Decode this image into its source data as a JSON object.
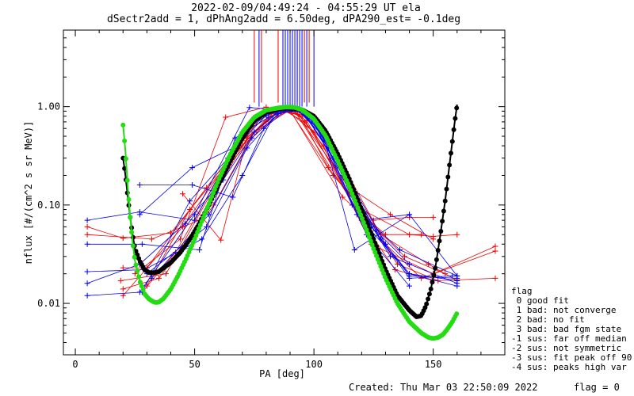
{
  "title_line1": "2022-02-09/04:49:24 - 04:55:29 UT ela",
  "title_line2": "dSectr2add = 1, dPhAng2add = 6.50deg, dPA290_est=  -0.1deg",
  "footer_created": "Created: Thu Mar 03 22:50:09 2022",
  "footer_flag": "flag = 0",
  "legend": {
    "heading": "flag",
    "entries": [
      " 0 good fit",
      " 1 bad: not converge",
      " 2 bad: no fit",
      " 3 bad: bad fgm state",
      "-1 sus: far off median",
      "-2 sus: not symmetric",
      "-3 sus: fit peak off 90",
      "-4 sus: peaks high var"
    ]
  },
  "colors": {
    "red": "#ee0000",
    "blue": "#0000ee",
    "black": "#000000",
    "green": "#22dd11"
  },
  "chart_data": {
    "type": "line",
    "xlabel": "PA [deg]",
    "ylabel": "nflux [#/(cm^2 s sr MeV)]",
    "xlim": [
      -5,
      180
    ],
    "ylim": [
      0.003,
      6
    ],
    "yscale": "log",
    "xticks": [
      0,
      50,
      100,
      150
    ],
    "xtick_labels": [
      "0",
      "50",
      "100",
      "150"
    ],
    "yticks": [
      0.01,
      0.1,
      1.0
    ],
    "ytick_labels": [
      "0.01",
      "0.10",
      "1.00"
    ],
    "grid": false,
    "series": [
      {
        "color": "black",
        "x": [
          20,
          21,
          22,
          23,
          24,
          25,
          27,
          29,
          31,
          33,
          35,
          37,
          40,
          44,
          48,
          52,
          56,
          60,
          65,
          70,
          75,
          80,
          85,
          88,
          90,
          92,
          95,
          100,
          105,
          110,
          115,
          120,
          125,
          130,
          135,
          140,
          143,
          145,
          147,
          149,
          151,
          153,
          155,
          157,
          159,
          160
        ],
        "y": [
          0.3,
          0.2,
          0.12,
          0.075,
          0.05,
          0.036,
          0.027,
          0.022,
          0.0205,
          0.0205,
          0.021,
          0.023,
          0.026,
          0.033,
          0.045,
          0.065,
          0.1,
          0.16,
          0.28,
          0.48,
          0.72,
          0.88,
          0.95,
          0.97,
          0.97,
          0.96,
          0.93,
          0.8,
          0.56,
          0.33,
          0.18,
          0.09,
          0.045,
          0.022,
          0.012,
          0.0085,
          0.0073,
          0.0075,
          0.0095,
          0.014,
          0.024,
          0.05,
          0.11,
          0.28,
          0.7,
          1.05
        ]
      },
      {
        "color": "green",
        "x": [
          20,
          21,
          22,
          23,
          24,
          25,
          27,
          29,
          31,
          33,
          34,
          35,
          37,
          40,
          43,
          46,
          50,
          55,
          60,
          65,
          70,
          75,
          80,
          85,
          88,
          90,
          92,
          95,
          100,
          105,
          110,
          115,
          120,
          125,
          130,
          135,
          140,
          145,
          148,
          150,
          152,
          154,
          156,
          158,
          160
        ],
        "y": [
          0.65,
          0.35,
          0.15,
          0.075,
          0.042,
          0.027,
          0.017,
          0.0125,
          0.011,
          0.0103,
          0.0102,
          0.0103,
          0.0112,
          0.014,
          0.019,
          0.027,
          0.045,
          0.09,
          0.18,
          0.33,
          0.55,
          0.78,
          0.92,
          0.97,
          0.99,
          0.99,
          0.98,
          0.93,
          0.75,
          0.5,
          0.28,
          0.15,
          0.075,
          0.036,
          0.018,
          0.01,
          0.0065,
          0.005,
          0.0045,
          0.0044,
          0.0045,
          0.0048,
          0.0055,
          0.0065,
          0.008
        ]
      }
    ],
    "red_spectra": [
      [
        [
          5,
          0.06
        ],
        [
          20,
          0.046
        ],
        [
          40,
          0.052
        ],
        [
          70,
          0.4
        ],
        [
          88,
          0.95
        ],
        [
          100,
          0.55
        ],
        [
          120,
          0.09
        ],
        [
          140,
          0.05
        ],
        [
          150,
          0.048
        ],
        [
          160,
          0.05
        ]
      ],
      [
        [
          20,
          0.023
        ],
        [
          30,
          0.023
        ],
        [
          55,
          0.15
        ],
        [
          78,
          0.78
        ],
        [
          89,
          0.98
        ],
        [
          108,
          0.2
        ],
        [
          125,
          0.07
        ],
        [
          140,
          0.075
        ],
        [
          150,
          0.075
        ]
      ],
      [
        [
          19,
          0.017
        ],
        [
          38,
          0.02
        ],
        [
          62,
          0.22
        ],
        [
          80,
          0.7
        ],
        [
          90,
          0.92
        ],
        [
          112,
          0.12
        ],
        [
          130,
          0.05
        ],
        [
          145,
          0.05
        ]
      ],
      [
        [
          20,
          0.014
        ],
        [
          35,
          0.018
        ],
        [
          58,
          0.1
        ],
        [
          75,
          0.55
        ],
        [
          91,
          0.96
        ],
        [
          115,
          0.15
        ],
        [
          132,
          0.08
        ],
        [
          150,
          0.045
        ]
      ],
      [
        [
          28,
          0.013
        ],
        [
          42,
          0.033
        ],
        [
          64,
          0.28
        ],
        [
          82,
          0.85
        ],
        [
          92,
          0.9
        ],
        [
          118,
          0.09
        ],
        [
          138,
          0.03
        ],
        [
          155,
          0.02
        ]
      ],
      [
        [
          20,
          0.012
        ],
        [
          45,
          0.06
        ],
        [
          66,
          0.32
        ],
        [
          84,
          0.92
        ],
        [
          94,
          0.83
        ],
        [
          106,
          0.24
        ],
        [
          128,
          0.05
        ],
        [
          148,
          0.025
        ],
        [
          160,
          0.017
        ]
      ],
      [
        [
          5,
          0.05
        ],
        [
          32,
          0.045
        ],
        [
          52,
          0.07
        ],
        [
          72,
          0.48
        ],
        [
          86,
          0.96
        ],
        [
          96,
          0.7
        ],
        [
          110,
          0.32
        ],
        [
          130,
          0.04
        ],
        [
          145,
          0.018
        ],
        [
          176,
          0.034
        ]
      ],
      [
        [
          25,
          0.02
        ],
        [
          44,
          0.045
        ],
        [
          63,
          0.78
        ],
        [
          80,
          0.99
        ],
        [
          93,
          0.86
        ],
        [
          104,
          0.4
        ],
        [
          124,
          0.04
        ],
        [
          150,
          0.02
        ],
        [
          176,
          0.038
        ]
      ],
      [
        [
          30,
          0.015
        ],
        [
          48,
          0.09
        ],
        [
          70,
          0.45
        ],
        [
          86,
          0.92
        ],
        [
          95,
          0.8
        ],
        [
          115,
          0.13
        ],
        [
          135,
          0.025
        ],
        [
          152,
          0.017
        ],
        [
          176,
          0.018
        ]
      ],
      [
        [
          45,
          0.13
        ],
        [
          61,
          0.044
        ],
        [
          73,
          0.6
        ],
        [
          88,
          0.97
        ],
        [
          97,
          0.72
        ],
        [
          120,
          0.07
        ],
        [
          134,
          0.022
        ],
        [
          150,
          0.017
        ]
      ]
    ],
    "blue_spectra": [
      [
        [
          5,
          0.016
        ],
        [
          27,
          0.025
        ],
        [
          46,
          0.065
        ],
        [
          62,
          0.18
        ],
        [
          75,
          0.55
        ],
        [
          86,
          0.92
        ],
        [
          95,
          0.88
        ],
        [
          108,
          0.4
        ],
        [
          118,
          0.13
        ],
        [
          130,
          0.04
        ],
        [
          140,
          0.019
        ],
        [
          160,
          0.018
        ]
      ],
      [
        [
          5,
          0.012
        ],
        [
          28,
          0.013
        ],
        [
          48,
          0.11
        ],
        [
          64,
          0.3
        ],
        [
          76,
          0.75
        ],
        [
          88,
          0.97
        ],
        [
          96,
          0.9
        ],
        [
          110,
          0.3
        ],
        [
          120,
          0.09
        ],
        [
          132,
          0.03
        ],
        [
          160,
          0.016
        ]
      ],
      [
        [
          27,
          0.16
        ],
        [
          49,
          0.16
        ],
        [
          66,
          0.12
        ],
        [
          79,
          0.6
        ],
        [
          89,
          0.96
        ],
        [
          98,
          0.85
        ],
        [
          112,
          0.2
        ],
        [
          124,
          0.06
        ],
        [
          140,
          0.02
        ],
        [
          160,
          0.015
        ]
      ],
      [
        [
          27,
          0.08
        ],
        [
          49,
          0.24
        ],
        [
          68,
          0.4
        ],
        [
          80,
          0.82
        ],
        [
          90,
          0.99
        ],
        [
          99,
          0.8
        ],
        [
          114,
          0.18
        ],
        [
          128,
          0.045
        ],
        [
          140,
          0.018
        ],
        [
          158,
          0.019
        ]
      ],
      [
        [
          5,
          0.07
        ],
        [
          27,
          0.085
        ],
        [
          50,
          0.07
        ],
        [
          70,
          0.55
        ],
        [
          83,
          0.9
        ],
        [
          91,
          0.98
        ],
        [
          100,
          0.7
        ],
        [
          116,
          0.1
        ],
        [
          136,
          0.035
        ],
        [
          160,
          0.019
        ]
      ],
      [
        [
          5,
          0.04
        ],
        [
          28,
          0.04
        ],
        [
          52,
          0.035
        ],
        [
          67,
          0.48
        ],
        [
          81,
          0.78
        ],
        [
          92,
          0.96
        ],
        [
          102,
          0.6
        ],
        [
          118,
          0.08
        ],
        [
          140,
          0.02
        ],
        [
          160,
          0.017
        ]
      ],
      [
        [
          5,
          0.021
        ],
        [
          29,
          0.022
        ],
        [
          53,
          0.045
        ],
        [
          70,
          0.2
        ],
        [
          84,
          0.88
        ],
        [
          93,
          0.93
        ],
        [
          104,
          0.5
        ],
        [
          117,
          0.035
        ],
        [
          140,
          0.08
        ],
        [
          160,
          0.019
        ]
      ],
      [
        [
          27,
          0.013
        ],
        [
          50,
          0.08
        ],
        [
          73,
          0.98
        ],
        [
          86,
          0.92
        ],
        [
          94,
          0.95
        ],
        [
          106,
          0.38
        ],
        [
          122,
          0.05
        ],
        [
          140,
          0.015
        ]
      ],
      [
        [
          30,
          0.02
        ],
        [
          55,
          0.06
        ],
        [
          72,
          0.38
        ],
        [
          85,
          0.85
        ],
        [
          95,
          0.92
        ],
        [
          108,
          0.3
        ],
        [
          126,
          0.055
        ],
        [
          140,
          0.025
        ]
      ],
      [
        [
          32,
          0.018
        ],
        [
          56,
          0.08
        ],
        [
          74,
          0.48
        ],
        [
          87,
          0.93
        ],
        [
          96,
          0.88
        ],
        [
          110,
          0.25
        ],
        [
          120,
          0.07
        ],
        [
          140,
          0.08
        ]
      ]
    ],
    "red_vlines_x": [
      75,
      78,
      85,
      88,
      93,
      96,
      98
    ],
    "blue_vlines_x": [
      77,
      87,
      88,
      89,
      90,
      91,
      92,
      93,
      94,
      95,
      97,
      100
    ]
  }
}
